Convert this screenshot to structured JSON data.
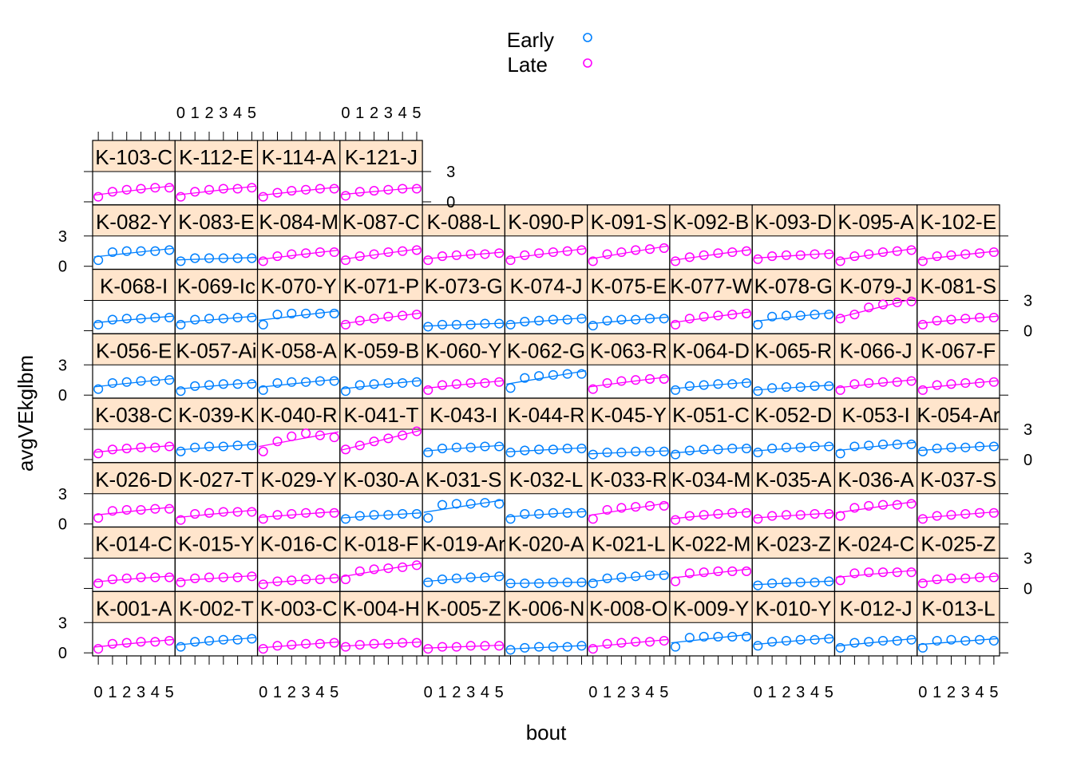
{
  "chart_data": {
    "type": "scatter",
    "panel_layout": "lattice 11 columns x 8 rows, panels filled bottom-left first",
    "xlabel": "bout",
    "ylabel": "avgVEkglbm",
    "x_ticks": [
      0,
      1,
      2,
      3,
      4,
      5
    ],
    "x_tick_labels": [
      "0",
      "1",
      "2",
      "3",
      "4",
      "5"
    ],
    "y_ticks": [
      0,
      3
    ],
    "y_tick_labels": [
      "0",
      "3"
    ],
    "xlim": [
      -0.4,
      5.4
    ],
    "ylim": [
      -0.3,
      3.0
    ],
    "legend": {
      "position": "top",
      "entries": [
        {
          "label": "Early",
          "color": "#0080ff"
        },
        {
          "label": "Late",
          "color": "#ff00ff"
        }
      ]
    },
    "strip_color": "#ffe5cc",
    "series_colors": {
      "Early": "#0080ff",
      "Late": "#ff00ff"
    },
    "panels": [
      {
        "name": "K-001-A",
        "group": "Late",
        "values": [
          0.4,
          0.9,
          1.0,
          1.1,
          1.1,
          1.2
        ]
      },
      {
        "name": "K-002-T",
        "group": "Early",
        "values": [
          0.6,
          1.1,
          1.2,
          1.3,
          1.3,
          1.4
        ]
      },
      {
        "name": "K-003-C",
        "group": "Late",
        "values": [
          0.4,
          0.7,
          0.8,
          0.9,
          0.9,
          1.0
        ]
      },
      {
        "name": "K-004-H",
        "group": "Late",
        "values": [
          0.6,
          0.8,
          0.9,
          0.9,
          1.0,
          1.0
        ]
      },
      {
        "name": "K-005-Z",
        "group": "Late",
        "values": [
          0.4,
          0.6,
          0.6,
          0.7,
          0.7,
          0.7
        ]
      },
      {
        "name": "K-006-N",
        "group": "Early",
        "values": [
          0.3,
          0.5,
          0.6,
          0.6,
          0.6,
          0.7
        ]
      },
      {
        "name": "K-008-O",
        "group": "Late",
        "values": [
          0.4,
          0.9,
          1.0,
          1.1,
          1.1,
          1.2
        ]
      },
      {
        "name": "K-009-Y",
        "group": "Early",
        "values": [
          0.6,
          1.5,
          1.6,
          1.6,
          1.6,
          1.6
        ]
      },
      {
        "name": "K-010-Y",
        "group": "Early",
        "values": [
          0.7,
          1.1,
          1.2,
          1.3,
          1.3,
          1.4
        ]
      },
      {
        "name": "K-012-J",
        "group": "Early",
        "values": [
          0.5,
          1.0,
          1.1,
          1.2,
          1.2,
          1.3
        ]
      },
      {
        "name": "K-013-L",
        "group": "Early",
        "values": [
          0.5,
          1.2,
          1.3,
          1.2,
          1.3,
          1.2
        ]
      },
      {
        "name": "K-014-C",
        "group": "Late",
        "values": [
          0.5,
          0.9,
          1.0,
          1.1,
          1.1,
          1.1
        ]
      },
      {
        "name": "K-015-Y",
        "group": "Late",
        "values": [
          0.6,
          1.0,
          1.1,
          1.1,
          1.1,
          1.2
        ]
      },
      {
        "name": "K-016-C",
        "group": "Late",
        "values": [
          0.4,
          0.7,
          0.8,
          0.9,
          0.9,
          1.0
        ]
      },
      {
        "name": "K-018-F",
        "group": "Late",
        "values": [
          0.9,
          1.7,
          1.9,
          2.0,
          2.1,
          2.3
        ]
      },
      {
        "name": "K-019-Ar",
        "group": "Early",
        "values": [
          0.6,
          0.9,
          1.0,
          1.1,
          1.1,
          1.2
        ]
      },
      {
        "name": "K-020-A",
        "group": "Early",
        "values": [
          0.5,
          0.5,
          0.5,
          0.6,
          0.6,
          0.6
        ]
      },
      {
        "name": "K-021-L",
        "group": "Early",
        "values": [
          0.5,
          1.0,
          1.1,
          1.2,
          1.3,
          1.3
        ]
      },
      {
        "name": "K-022-M",
        "group": "Late",
        "values": [
          0.7,
          1.5,
          1.6,
          1.7,
          1.7,
          1.7
        ]
      },
      {
        "name": "K-023-Z",
        "group": "Early",
        "values": [
          0.3,
          0.5,
          0.6,
          0.6,
          0.6,
          0.7
        ]
      },
      {
        "name": "K-024-C",
        "group": "Late",
        "values": [
          0.8,
          1.5,
          1.6,
          1.6,
          1.6,
          1.6
        ]
      },
      {
        "name": "K-025-Z",
        "group": "Late",
        "values": [
          0.5,
          0.9,
          1.0,
          1.0,
          1.1,
          1.1
        ]
      },
      {
        "name": "K-026-D",
        "group": "Late",
        "values": [
          0.6,
          1.3,
          1.4,
          1.4,
          1.5,
          1.5
        ]
      },
      {
        "name": "K-027-T",
        "group": "Late",
        "values": [
          0.4,
          1.0,
          1.1,
          1.2,
          1.2,
          1.2
        ]
      },
      {
        "name": "K-029-Y",
        "group": "Late",
        "values": [
          0.5,
          0.9,
          1.0,
          1.1,
          1.1,
          1.1
        ]
      },
      {
        "name": "K-030-A",
        "group": "Early",
        "values": [
          0.5,
          0.8,
          0.9,
          0.9,
          1.0,
          1.0
        ]
      },
      {
        "name": "K-031-S",
        "group": "Early",
        "values": [
          0.6,
          1.9,
          2.0,
          2.0,
          2.1,
          2.0
        ]
      },
      {
        "name": "K-032-L",
        "group": "Early",
        "values": [
          0.5,
          1.0,
          1.0,
          1.1,
          1.1,
          1.1
        ]
      },
      {
        "name": "K-033-R",
        "group": "Late",
        "values": [
          0.5,
          1.4,
          1.6,
          1.7,
          1.8,
          1.8
        ]
      },
      {
        "name": "K-034-M",
        "group": "Late",
        "values": [
          0.4,
          0.8,
          0.9,
          1.0,
          1.1,
          1.1
        ]
      },
      {
        "name": "K-035-A",
        "group": "Late",
        "values": [
          0.5,
          0.8,
          0.9,
          0.9,
          1.0,
          1.0
        ]
      },
      {
        "name": "K-036-A",
        "group": "Late",
        "values": [
          0.8,
          1.6,
          1.8,
          1.9,
          1.9,
          2.0
        ]
      },
      {
        "name": "K-037-S",
        "group": "Late",
        "values": [
          0.5,
          0.8,
          0.9,
          1.0,
          1.1,
          1.1
        ]
      },
      {
        "name": "K-038-C",
        "group": "Late",
        "values": [
          0.6,
          1.0,
          1.1,
          1.2,
          1.2,
          1.3
        ]
      },
      {
        "name": "K-039-K",
        "group": "Early",
        "values": [
          0.8,
          1.2,
          1.3,
          1.3,
          1.4,
          1.4
        ]
      },
      {
        "name": "K-040-R",
        "group": "Late",
        "values": [
          0.8,
          1.8,
          2.3,
          2.6,
          2.4,
          2.2
        ]
      },
      {
        "name": "K-041-T",
        "group": "Late",
        "values": [
          1.0,
          1.4,
          1.8,
          2.1,
          2.4,
          2.8
        ]
      },
      {
        "name": "K-043-I",
        "group": "Early",
        "values": [
          0.7,
          1.1,
          1.2,
          1.2,
          1.3,
          1.3
        ]
      },
      {
        "name": "K-044-R",
        "group": "Early",
        "values": [
          0.7,
          0.9,
          1.0,
          1.0,
          1.1,
          1.1
        ]
      },
      {
        "name": "K-045-Y",
        "group": "Early",
        "values": [
          0.5,
          0.7,
          0.7,
          0.8,
          0.8,
          0.8
        ]
      },
      {
        "name": "K-051-C",
        "group": "Early",
        "values": [
          0.5,
          0.9,
          1.0,
          1.0,
          1.1,
          1.1
        ]
      },
      {
        "name": "K-052-D",
        "group": "Early",
        "values": [
          0.7,
          1.1,
          1.2,
          1.2,
          1.3,
          1.3
        ]
      },
      {
        "name": "K-053-I",
        "group": "Early",
        "values": [
          0.6,
          1.3,
          1.4,
          1.5,
          1.5,
          1.5
        ]
      },
      {
        "name": "K-054-Ar",
        "group": "Early",
        "values": [
          0.8,
          1.1,
          1.2,
          1.2,
          1.3,
          1.3
        ]
      },
      {
        "name": "K-056-E",
        "group": "Early",
        "values": [
          0.6,
          1.2,
          1.3,
          1.4,
          1.4,
          1.5
        ]
      },
      {
        "name": "K-057-Ai",
        "group": "Early",
        "values": [
          0.4,
          0.9,
          1.0,
          1.1,
          1.1,
          1.1
        ]
      },
      {
        "name": "K-058-A",
        "group": "Early",
        "values": [
          0.5,
          1.2,
          1.3,
          1.3,
          1.4,
          1.4
        ]
      },
      {
        "name": "K-059-B",
        "group": "Early",
        "values": [
          0.4,
          1.0,
          1.1,
          1.2,
          1.2,
          1.3
        ]
      },
      {
        "name": "K-060-Y",
        "group": "Late",
        "values": [
          0.5,
          1.0,
          1.1,
          1.2,
          1.2,
          1.3
        ]
      },
      {
        "name": "K-062-G",
        "group": "Early",
        "values": [
          0.7,
          1.7,
          1.9,
          2.0,
          2.1,
          2.1
        ]
      },
      {
        "name": "K-063-R",
        "group": "Late",
        "values": [
          0.6,
          1.2,
          1.4,
          1.5,
          1.6,
          1.6
        ]
      },
      {
        "name": "K-064-D",
        "group": "Early",
        "values": [
          0.5,
          0.9,
          1.0,
          1.1,
          1.1,
          1.2
        ]
      },
      {
        "name": "K-065-R",
        "group": "Early",
        "values": [
          0.4,
          0.7,
          0.8,
          0.8,
          0.9,
          0.9
        ]
      },
      {
        "name": "K-066-J",
        "group": "Late",
        "values": [
          0.5,
          1.1,
          1.2,
          1.3,
          1.3,
          1.4
        ]
      },
      {
        "name": "K-067-F",
        "group": "Late",
        "values": [
          0.5,
          1.0,
          1.1,
          1.2,
          1.2,
          1.3
        ]
      },
      {
        "name": "K-068-I",
        "group": "Early",
        "values": [
          0.6,
          1.1,
          1.2,
          1.2,
          1.3,
          1.3
        ]
      },
      {
        "name": "K-069-Ic",
        "group": "Early",
        "values": [
          0.6,
          1.1,
          1.2,
          1.2,
          1.3,
          1.3
        ]
      },
      {
        "name": "K-070-Y",
        "group": "Early",
        "values": [
          0.6,
          1.6,
          1.7,
          1.7,
          1.7,
          1.7
        ]
      },
      {
        "name": "K-071-P",
        "group": "Late",
        "values": [
          0.6,
          1.0,
          1.2,
          1.4,
          1.5,
          1.6
        ]
      },
      {
        "name": "K-073-G",
        "group": "Early",
        "values": [
          0.4,
          0.6,
          0.6,
          0.6,
          0.7,
          0.7
        ]
      },
      {
        "name": "K-074-J",
        "group": "Early",
        "values": [
          0.6,
          0.9,
          1.0,
          1.1,
          1.1,
          1.2
        ]
      },
      {
        "name": "K-075-E",
        "group": "Early",
        "values": [
          0.5,
          1.0,
          1.1,
          1.1,
          1.2,
          1.2
        ]
      },
      {
        "name": "K-077-W",
        "group": "Late",
        "values": [
          0.6,
          1.2,
          1.4,
          1.5,
          1.6,
          1.7
        ]
      },
      {
        "name": "K-078-G",
        "group": "Early",
        "values": [
          0.6,
          1.4,
          1.5,
          1.5,
          1.6,
          1.6
        ]
      },
      {
        "name": "K-079-J",
        "group": "Late",
        "values": [
          1.2,
          1.6,
          2.3,
          2.6,
          2.8,
          2.9
        ]
      },
      {
        "name": "K-081-S",
        "group": "Late",
        "values": [
          0.6,
          1.0,
          1.1,
          1.2,
          1.3,
          1.3
        ]
      },
      {
        "name": "K-082-Y",
        "group": "Early",
        "values": [
          0.6,
          1.4,
          1.5,
          1.5,
          1.5,
          1.6
        ]
      },
      {
        "name": "K-083-E",
        "group": "Early",
        "values": [
          0.5,
          0.8,
          0.8,
          0.8,
          0.8,
          0.8
        ]
      },
      {
        "name": "K-084-M",
        "group": "Late",
        "values": [
          0.5,
          1.0,
          1.2,
          1.3,
          1.4,
          1.4
        ]
      },
      {
        "name": "K-087-C",
        "group": "Late",
        "values": [
          0.6,
          1.0,
          1.2,
          1.4,
          1.5,
          1.6
        ]
      },
      {
        "name": "K-088-L",
        "group": "Late",
        "values": [
          0.6,
          1.0,
          1.1,
          1.2,
          1.2,
          1.3
        ]
      },
      {
        "name": "K-090-P",
        "group": "Late",
        "values": [
          0.6,
          1.1,
          1.3,
          1.4,
          1.5,
          1.6
        ]
      },
      {
        "name": "K-091-S",
        "group": "Late",
        "values": [
          0.5,
          1.2,
          1.4,
          1.6,
          1.7,
          1.8
        ]
      },
      {
        "name": "K-092-B",
        "group": "Late",
        "values": [
          0.5,
          0.9,
          1.1,
          1.3,
          1.4,
          1.5
        ]
      },
      {
        "name": "K-093-D",
        "group": "Late",
        "values": [
          0.7,
          1.0,
          1.1,
          1.1,
          1.2,
          1.2
        ]
      },
      {
        "name": "K-095-A",
        "group": "Late",
        "values": [
          0.5,
          1.0,
          1.2,
          1.4,
          1.5,
          1.6
        ]
      },
      {
        "name": "K-102-E",
        "group": "Late",
        "values": [
          0.5,
          1.0,
          1.1,
          1.2,
          1.3,
          1.4
        ]
      },
      {
        "name": "K-103-C",
        "group": "Late",
        "values": [
          0.5,
          1.0,
          1.2,
          1.3,
          1.4,
          1.4
        ]
      },
      {
        "name": "K-112-E",
        "group": "Late",
        "values": [
          0.5,
          1.0,
          1.2,
          1.3,
          1.3,
          1.4
        ]
      },
      {
        "name": "K-114-A",
        "group": "Late",
        "values": [
          0.5,
          0.9,
          1.1,
          1.2,
          1.3,
          1.3
        ]
      },
      {
        "name": "K-121-J",
        "group": "Late",
        "values": [
          0.6,
          1.0,
          1.1,
          1.2,
          1.3,
          1.3
        ]
      }
    ]
  }
}
